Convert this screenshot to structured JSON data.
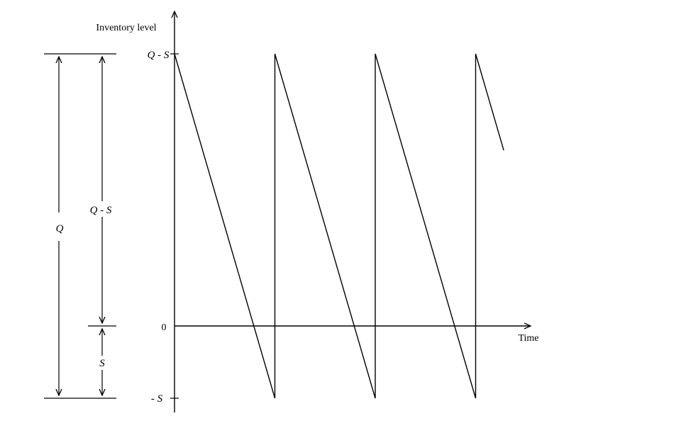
{
  "diagram": {
    "y_axis_label": "Inventory level",
    "x_axis_label": "Time",
    "tick_top": "Q - S",
    "tick_zero": "0",
    "tick_bottom": "- S",
    "dim_q": "Q",
    "dim_q_minus_s": "Q - S",
    "dim_s": "S",
    "cycles_full": 3,
    "cycles_partial_fraction": 0.28,
    "colors": {
      "line": "#000000",
      "background": "#ffffff"
    }
  }
}
